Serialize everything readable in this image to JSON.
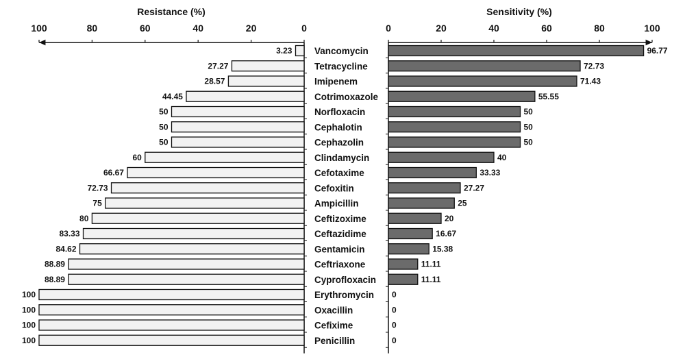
{
  "chart_data": [
    {
      "type": "bar",
      "orientation": "horizontal",
      "direction": "right-to-left",
      "title": "Resistance (%)",
      "xlim": [
        0,
        100
      ],
      "ticks": [
        "100",
        "80",
        "60",
        "40",
        "20",
        "0"
      ],
      "bar_color": "#f2f2f2",
      "categories": [
        "Vancomycin",
        "Tetracycline",
        "Imipenem",
        "Cotrimoxazole",
        "Norfloxacin",
        "Cephalotin",
        "Cephazolin",
        "Clindamycin",
        "Cefotaxime",
        "Cefoxitin",
        "Ampicillin",
        "Ceftizoxime",
        "Ceftazidime",
        "Gentamicin",
        "Ceftriaxone",
        "Cyprofloxacin",
        "Erythromycin",
        "Oxacillin",
        "Cefixime",
        "Penicillin"
      ],
      "values": [
        3.23,
        27.27,
        28.57,
        44.45,
        50,
        50,
        50,
        60,
        66.67,
        72.73,
        75,
        80,
        83.33,
        84.62,
        88.89,
        88.89,
        100,
        100,
        100,
        100
      ],
      "labels": [
        "3.23",
        "27.27",
        "28.57",
        "44.45",
        "50",
        "50",
        "50",
        "60",
        "66.67",
        "72.73",
        "75",
        "80",
        "83.33",
        "84.62",
        "88.89",
        "88.89",
        "100",
        "100",
        "100",
        "100"
      ]
    },
    {
      "type": "bar",
      "orientation": "horizontal",
      "direction": "left-to-right",
      "title": "Sensitivity (%)",
      "xlim": [
        0,
        100
      ],
      "ticks": [
        "0",
        "20",
        "40",
        "60",
        "80",
        "100"
      ],
      "bar_color": "#6b6b6b",
      "categories": [
        "Vancomycin",
        "Tetracycline",
        "Imipenem",
        "Cotrimoxazole",
        "Norfloxacin",
        "Cephalotin",
        "Cephazolin",
        "Clindamycin",
        "Cefotaxime",
        "Cefoxitin",
        "Ampicillin",
        "Ceftizoxime",
        "Ceftazidime",
        "Gentamicin",
        "Ceftriaxone",
        "Cyprofloxacin",
        "Erythromycin",
        "Oxacillin",
        "Cefixime",
        "Penicillin"
      ],
      "values": [
        96.77,
        72.73,
        71.43,
        55.55,
        50,
        50,
        50,
        40,
        33.33,
        27.27,
        25,
        20,
        16.67,
        15.38,
        11.11,
        11.11,
        0,
        0,
        0,
        0
      ],
      "labels": [
        "96.77",
        "72.73",
        "71.43",
        "55.55",
        "50",
        "50",
        "50",
        "40",
        "33.33",
        "27.27",
        "25",
        "20",
        "16.67",
        "15.38",
        "11.11",
        "11.11",
        "0",
        "0",
        "0",
        "0"
      ]
    }
  ]
}
